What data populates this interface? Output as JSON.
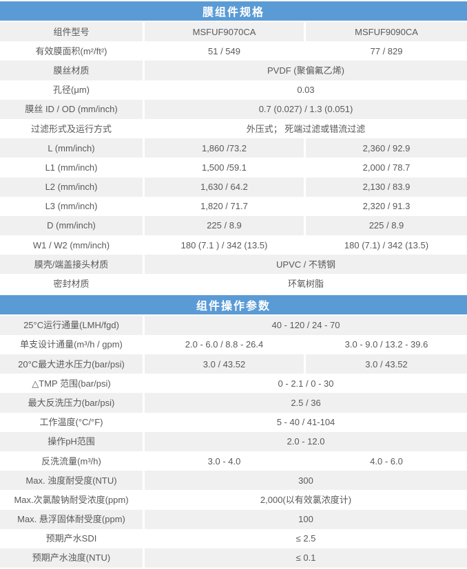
{
  "colors": {
    "header_bg": "#5b9bd5",
    "header_text": "#ffffff",
    "row_alt_bg": "#f0f0f0",
    "body_text": "#595959"
  },
  "sections": [
    {
      "title": "膜组件规格",
      "rows": [
        {
          "label": "组件型号",
          "values": [
            "MSFUF9070CA",
            "MSFUF9090CA"
          ]
        },
        {
          "label": "有效膜面积(m²/ft²)",
          "values": [
            "51 / 549",
            "77 / 829"
          ]
        },
        {
          "label": "膜丝材质",
          "values": [
            "PVDF (聚偏氟乙烯)"
          ]
        },
        {
          "label": "孔径(μm)",
          "values": [
            "0.03"
          ]
        },
        {
          "label": "膜丝 ID / OD (mm/inch)",
          "values": [
            "0.7 (0.027) / 1.3 (0.051)"
          ]
        },
        {
          "label": "过滤形式及运行方式",
          "values": [
            "外压式； 死端过滤或错流过滤"
          ]
        },
        {
          "label": "L (mm/inch)",
          "values": [
            "1,860 /73.2",
            "2,360 / 92.9"
          ]
        },
        {
          "label": "L1 (mm/inch)",
          "values": [
            "1,500 /59.1",
            "2,000 / 78.7"
          ]
        },
        {
          "label": "L2 (mm/inch)",
          "values": [
            "1,630 / 64.2",
            "2,130 / 83.9"
          ]
        },
        {
          "label": "L3 (mm/inch)",
          "values": [
            "1,820 / 71.7",
            "2,320 / 91.3"
          ]
        },
        {
          "label": "D (mm/inch)",
          "values": [
            "225 / 8.9",
            "225 / 8.9"
          ]
        },
        {
          "label": "W1 / W2 (mm/inch)",
          "values": [
            "180 (7.1 ) / 342 (13.5)",
            "180 (7.1) / 342 (13.5)"
          ]
        },
        {
          "label": "膜壳/端盖接头材质",
          "values": [
            "UPVC / 不锈钢"
          ]
        },
        {
          "label": "密封材质",
          "values": [
            "环氧树脂"
          ]
        }
      ]
    },
    {
      "title": "组件操作参数",
      "rows": [
        {
          "label": "25°C运行通量(LMH/fgd)",
          "values": [
            "40 - 120 / 24 - 70"
          ]
        },
        {
          "label": "单支设计通量(m³/h / gpm)",
          "values": [
            "2.0 - 6.0 / 8.8 - 26.4",
            "3.0 - 9.0 / 13.2 - 39.6"
          ]
        },
        {
          "label": "20°C最大进水压力(bar/psi)",
          "values": [
            "3.0 / 43.52",
            "3.0 / 43.52"
          ]
        },
        {
          "label": "△TMP 范围(bar/psi)",
          "values": [
            "0 - 2.1 / 0 - 30"
          ]
        },
        {
          "label": "最大反洗压力(bar/psi)",
          "values": [
            "2.5 / 36"
          ]
        },
        {
          "label": "工作温度(°C/°F)",
          "values": [
            "5 - 40 / 41-104"
          ]
        },
        {
          "label": "操作pH范围",
          "values": [
            "2.0 - 12.0"
          ]
        },
        {
          "label": "反洗流量(m³/h)",
          "values": [
            "3.0 - 4.0",
            "4.0 - 6.0"
          ]
        },
        {
          "label": "Max. 浊度耐受度(NTU)",
          "values": [
            "300"
          ]
        },
        {
          "label": "Max.次氯酸钠耐受浓度(ppm)",
          "values": [
            "2,000(以有效氯浓度计)"
          ]
        },
        {
          "label": "Max. 悬浮固体耐受度(ppm)",
          "values": [
            "100"
          ]
        },
        {
          "label": "预期产水SDI",
          "values": [
            "≤ 2.5"
          ]
        },
        {
          "label": "预期产水浊度(NTU)",
          "values": [
            "≤ 0.1"
          ]
        }
      ]
    }
  ]
}
